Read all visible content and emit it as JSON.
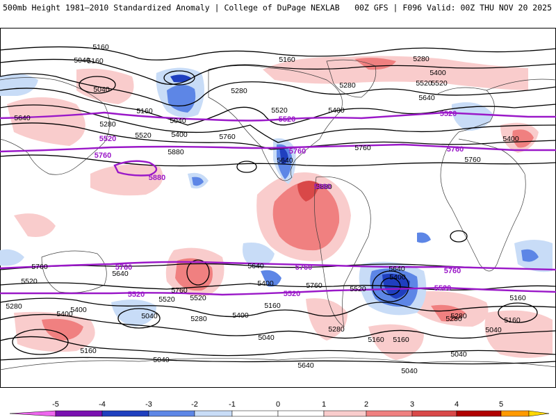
{
  "header": {
    "title_left": "500mb Height 1981–2010 Standardized Anomaly | College of DuPage NEXLAB",
    "title_right": "00Z GFS | F096 Valid: 00Z THU NOV 20 2025"
  },
  "colors": {
    "ocean": "#ffffff",
    "coast": "#3a3a3a",
    "contour_black": "#000000",
    "contour_purple": "#9a18c8",
    "neg5": "#ee66ee",
    "neg4": "#7a10b0",
    "neg3": "#1f3fbf",
    "neg2": "#5d86e6",
    "neg1": "#c8dcf7",
    "pos1": "#f9cccc",
    "pos2": "#f08080",
    "pos3": "#d94848",
    "pos4": "#b00000",
    "pos5": "#ff9900",
    "pos6": "#ffd700"
  },
  "map": {
    "height_labels": [
      {
        "text": "5160"
      },
      {
        "text": "5160"
      },
      {
        "text": "5040"
      },
      {
        "text": "5160"
      },
      {
        "text": "5280"
      },
      {
        "text": "5640"
      },
      {
        "text": "5520"
      },
      {
        "text": "5400"
      },
      {
        "text": "5760"
      },
      {
        "text": "5880"
      },
      {
        "text": "5040"
      },
      {
        "text": "5280"
      },
      {
        "text": "5160"
      },
      {
        "text": "5520"
      },
      {
        "text": "5400"
      },
      {
        "text": "5760"
      },
      {
        "text": "5640"
      },
      {
        "text": "5880"
      },
      {
        "text": "5280"
      },
      {
        "text": "5400"
      },
      {
        "text": "5520"
      },
      {
        "text": "5640"
      },
      {
        "text": "5280"
      },
      {
        "text": "5400"
      },
      {
        "text": "5760"
      },
      {
        "text": "5760"
      },
      {
        "text": "5520"
      },
      {
        "text": "5640"
      },
      {
        "text": "5280"
      },
      {
        "text": "5400"
      },
      {
        "text": "5040"
      },
      {
        "text": "5160"
      },
      {
        "text": "5520"
      },
      {
        "text": "5640"
      },
      {
        "text": "5400"
      },
      {
        "text": "5760"
      },
      {
        "text": "5280"
      },
      {
        "text": "5640"
      },
      {
        "text": "5400"
      },
      {
        "text": "5160"
      },
      {
        "text": "5520"
      },
      {
        "text": "5040"
      },
      {
        "text": "5160"
      },
      {
        "text": "5040"
      },
      {
        "text": "5280"
      },
      {
        "text": "5160"
      },
      {
        "text": "5160"
      },
      {
        "text": "5040"
      },
      {
        "text": "5040"
      },
      {
        "text": "5040"
      },
      {
        "text": "5640"
      },
      {
        "text": "5400"
      },
      {
        "text": "5520"
      },
      {
        "text": "5760"
      },
      {
        "text": "5520"
      },
      {
        "text": "5280"
      },
      {
        "text": "5160"
      },
      {
        "text": "5040"
      },
      {
        "text": "5400"
      },
      {
        "text": "5280"
      }
    ],
    "purple_labels": [
      {
        "text": "5520"
      },
      {
        "text": "5760"
      },
      {
        "text": "5880"
      },
      {
        "text": "5520"
      },
      {
        "text": "5760"
      },
      {
        "text": "5880"
      },
      {
        "text": "5520"
      },
      {
        "text": "5760"
      },
      {
        "text": "5760"
      },
      {
        "text": "5520"
      },
      {
        "text": "5520"
      },
      {
        "text": "5760"
      },
      {
        "text": "5520"
      },
      {
        "text": "5760"
      }
    ]
  },
  "colorbar": {
    "ticks": [
      "-5",
      "-4",
      "-3",
      "-2",
      "-1",
      "0",
      "1",
      "2",
      "3",
      "4",
      "5"
    ]
  }
}
